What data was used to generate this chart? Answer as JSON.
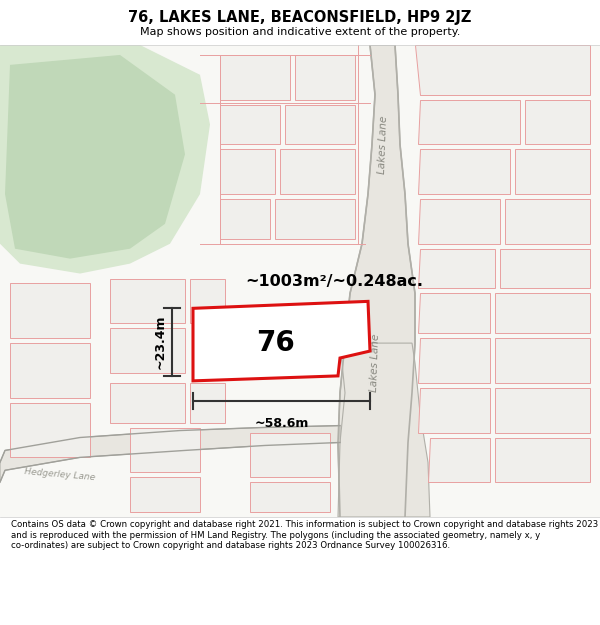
{
  "title": "76, LAKES LANE, BEACONSFIELD, HP9 2JZ",
  "subtitle": "Map shows position and indicative extent of the property.",
  "footer": "Contains OS data © Crown copyright and database right 2021. This information is subject to Crown copyright and database rights 2023 and is reproduced with the permission of HM Land Registry. The polygons (including the associated geometry, namely x, y co-ordinates) are subject to Crown copyright and database rights 2023 Ordnance Survey 100026316.",
  "bg_color": "#ffffff",
  "map_bg": "#f8f8f5",
  "green_color": "#d8e8d0",
  "green_inner_color": "#c0d8b8",
  "road_gray": "#d0cfc8",
  "road_edge": "#b0afa8",
  "plot_fill": "#f0efec",
  "plot_edge": "#e8a0a0",
  "main_fill": "#ffffff",
  "main_edge": "#dd1111",
  "dim_color": "#333333",
  "label_color": "#333333",
  "area_label": "~1003m²/~0.248ac.",
  "dim_width": "~58.6m",
  "dim_height": "~23.4m",
  "lakes_lane_label": "Lakes Lane",
  "hedgerley_lane_label": "Hedgerley Lane",
  "label_76": "76"
}
